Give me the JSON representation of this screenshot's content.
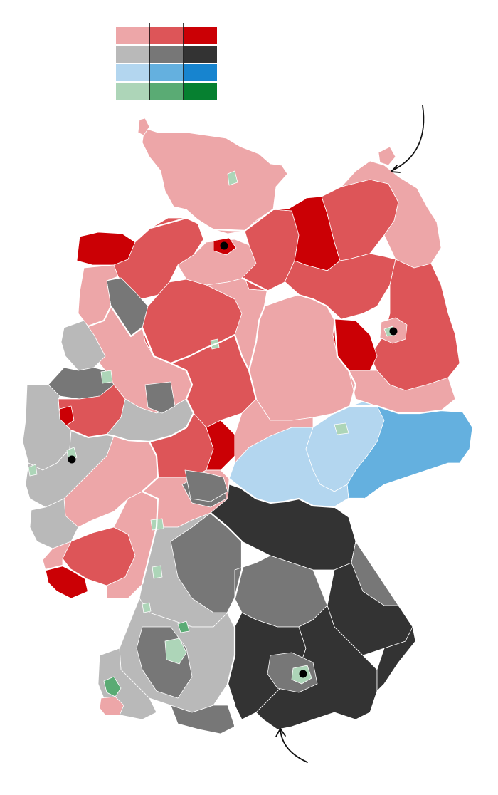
{
  "map": {
    "subject": "germany-electoral-districts-choropleth",
    "legend": {
      "rows": [
        {
          "party": "red",
          "colors": [
            "#eda6a8",
            "#dd5558",
            "#cb0005"
          ]
        },
        {
          "party": "gray",
          "colors": [
            "#b9b9b9",
            "#777777",
            "#333333"
          ]
        },
        {
          "party": "blue",
          "colors": [
            "#b3d6ef",
            "#64b0df",
            "#1784cf"
          ]
        },
        {
          "party": "green",
          "colors": [
            "#add5b8",
            "#5aab74",
            "#068030"
          ]
        }
      ]
    },
    "colors": {
      "red_light": "#eda6a8",
      "red_mid": "#dd5558",
      "red_dark": "#cb0005",
      "gray_light": "#b9b9b9",
      "gray_mid": "#777777",
      "gray_dark": "#333333",
      "blue_light": "#b3d6ef",
      "blue_mid": "#64b0df",
      "blue_dark": "#1784cf",
      "green_light": "#add5b8",
      "green_mid": "#5aab74",
      "green_dark": "#068030",
      "border": "#ffffff",
      "marker": "#000000"
    },
    "city_markers": [
      "hamburg",
      "berlin",
      "cologne",
      "munich"
    ],
    "annotations": [
      "arrow-northeast",
      "arrow-south"
    ]
  }
}
